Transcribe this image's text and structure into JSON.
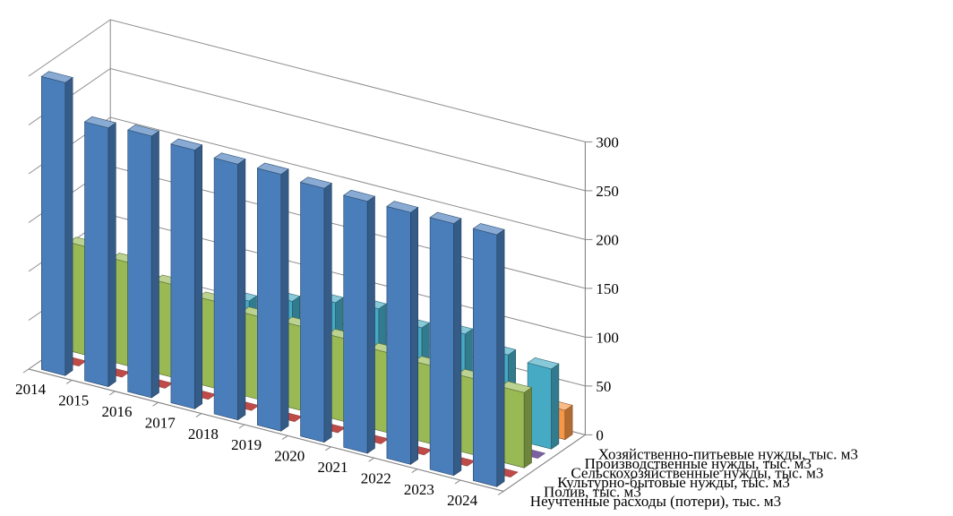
{
  "chart_data": {
    "type": "bar",
    "subtype": "3d-column",
    "categories": [
      "2014",
      "2015",
      "2016",
      "2017",
      "2018",
      "2019",
      "2020",
      "2021",
      "2022",
      "2023",
      "2024"
    ],
    "series": [
      {
        "name": "Хозяйственно-питьевые нужды, тыс. м3",
        "color": "#4a7ebb",
        "values": [
          300,
          265,
          268,
          265,
          262,
          263,
          260,
          258,
          258,
          258,
          258
        ]
      },
      {
        "name": "Производственные нужды, тыс. м3",
        "color": "#be4b48",
        "values": [
          0,
          0,
          0,
          0,
          0,
          0,
          0,
          0,
          0,
          0,
          0
        ]
      },
      {
        "name": "Сельскохозяйственные нужды, тыс. м3",
        "color": "#98b954",
        "values": [
          111,
          106,
          95,
          89,
          85,
          86,
          85,
          82,
          80,
          78,
          77
        ]
      },
      {
        "name": "Культурно-бытовые нужды, тыс. м3",
        "color": "#7d60a0",
        "values": [
          0,
          0,
          0,
          0,
          0,
          0,
          0,
          0,
          0,
          0,
          0
        ]
      },
      {
        "name": "Полив, тыс. м3",
        "color": "#46aac5",
        "values": [
          35,
          33,
          34,
          72,
          83,
          93,
          98,
          90,
          95,
          85,
          82
        ]
      },
      {
        "name": "Неучтенные расходы (потери), тыс. м3",
        "color": "#f79646",
        "values": [
          40,
          30,
          20,
          25,
          25,
          30,
          30,
          30,
          30,
          30,
          30
        ]
      }
    ],
    "y_axis": {
      "min": 0,
      "max": 300,
      "ticks": [
        "0",
        "50",
        "100",
        "150",
        "200",
        "250",
        "300"
      ]
    },
    "grid": true,
    "legend": "none"
  }
}
